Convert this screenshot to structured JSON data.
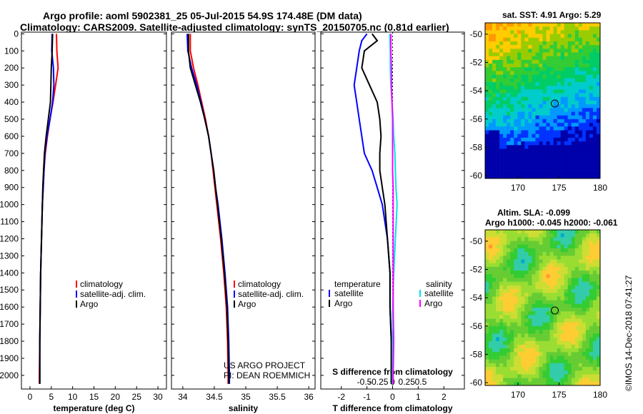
{
  "header": {
    "title_line1": "Argo profile: aoml 5902381_25 05-Jul-2015 54.9S 174.48E (DM data)",
    "title_line2": "Climatology: CARS2009. Satellite-adjusted climatology: synTS_20150705.nc (0.81d earlier)"
  },
  "sst_panel": {
    "title": "sat. SST: 4.91 Argo: 5.29",
    "y_ticks": [
      "-50",
      "-52",
      "-54",
      "-56",
      "-58",
      "-60"
    ],
    "x_ticks": [
      "170",
      "175",
      "180"
    ]
  },
  "sla_panel": {
    "title1": "Altim. SLA: -0.099",
    "title2": "Argo h1000: -0.045 h2000: -0.061",
    "y_ticks": [
      "-50",
      "-52",
      "-54",
      "-56",
      "-58",
      "-60"
    ],
    "x_ticks": [
      "170",
      "175",
      "180"
    ]
  },
  "side_label": "©IMOS 14-Dec-2018 07:41:27",
  "colors": {
    "climatology": "#ff0000",
    "satellite": "#0000ff",
    "argo": "#000000",
    "cyan": "#00e5ee",
    "magenta": "#ff00ff"
  },
  "chart_data": [
    {
      "type": "line",
      "title": "",
      "xlabel": "temperature (deg C)",
      "ylabel": "",
      "x_ticks": [
        "0",
        "5",
        "10",
        "15",
        "20",
        "25",
        "30"
      ],
      "y_ticks": [
        "0",
        "100",
        "200",
        "300",
        "400",
        "500",
        "600",
        "700",
        "800",
        "900",
        "1000",
        "1100",
        "1200",
        "1300",
        "1400",
        "1500",
        "1600",
        "1700",
        "1800",
        "1900",
        "2000"
      ],
      "xlim": [
        -2,
        32
      ],
      "ylim": [
        2080,
        -10
      ],
      "legend": [
        "climatology",
        "satellite-adj. clim.",
        "Argo"
      ],
      "series": [
        {
          "name": "climatology",
          "color": "#ff0000",
          "depth": [
            0,
            100,
            200,
            300,
            400,
            500,
            600,
            700,
            800,
            900,
            1000,
            1200,
            1400,
            1600,
            1800,
            2000,
            2050
          ],
          "values": [
            6.2,
            6.3,
            6.6,
            6.0,
            5.4,
            4.7,
            4.1,
            3.6,
            3.3,
            3.1,
            2.9,
            2.7,
            2.5,
            2.4,
            2.3,
            2.2,
            2.2
          ]
        },
        {
          "name": "satellite-adj. clim.",
          "color": "#0000ff",
          "depth": [
            0,
            100,
            200,
            300,
            400,
            500,
            600,
            700,
            800,
            900,
            1000,
            1200,
            1400,
            1600,
            1800,
            2000,
            2050
          ],
          "values": [
            5.2,
            5.1,
            5.5,
            5.6,
            5.3,
            4.7,
            4.0,
            3.5,
            3.3,
            3.1,
            2.9,
            2.7,
            2.5,
            2.4,
            2.3,
            2.3,
            2.3
          ]
        },
        {
          "name": "Argo",
          "color": "#000000",
          "depth": [
            0,
            100,
            200,
            300,
            400,
            500,
            600,
            700,
            800,
            900,
            1000,
            1200,
            1400,
            1600,
            1800,
            2000,
            2050
          ],
          "values": [
            5.3,
            5.2,
            5.0,
            4.9,
            4.8,
            4.3,
            3.8,
            3.4,
            3.2,
            3.0,
            2.9,
            2.7,
            2.5,
            2.4,
            2.3,
            2.3,
            2.3
          ]
        }
      ]
    },
    {
      "type": "line",
      "title": "",
      "xlabel": "salinity",
      "ylabel": "",
      "x_ticks": [
        "34",
        "34.5",
        "35",
        "35.5",
        "36"
      ],
      "xlim": [
        33.82,
        36.1
      ],
      "ylim": [
        2080,
        -10
      ],
      "legend": [
        "climatology",
        "satellite-adj. clim.",
        "Argo"
      ],
      "annotations": [
        "US ARGO PROJECT",
        "PI: DEAN ROEMMICH"
      ],
      "series": [
        {
          "name": "climatology",
          "color": "#ff0000",
          "depth": [
            0,
            100,
            200,
            300,
            400,
            500,
            600,
            700,
            800,
            900,
            1000,
            1200,
            1400,
            1600,
            1800,
            2000,
            2050
          ],
          "values": [
            34.12,
            34.12,
            34.17,
            34.24,
            34.3,
            34.36,
            34.41,
            34.45,
            34.48,
            34.51,
            34.54,
            34.6,
            34.65,
            34.69,
            34.71,
            34.72,
            34.72
          ]
        },
        {
          "name": "satellite-adj. clim.",
          "color": "#0000ff",
          "depth": [
            0,
            100,
            200,
            300,
            400,
            500,
            600,
            700,
            800,
            900,
            1000,
            1200,
            1400,
            1600,
            1800,
            2000,
            2050
          ],
          "values": [
            34.07,
            34.08,
            34.14,
            34.22,
            34.29,
            34.35,
            34.41,
            34.45,
            34.49,
            34.52,
            34.56,
            34.62,
            34.67,
            34.71,
            34.73,
            34.74,
            34.74
          ]
        },
        {
          "name": "Argo",
          "color": "#000000",
          "depth": [
            0,
            100,
            200,
            300,
            400,
            500,
            600,
            700,
            800,
            900,
            1000,
            1200,
            1400,
            1600,
            1800,
            2000,
            2050
          ],
          "values": [
            34.09,
            34.09,
            34.12,
            34.2,
            34.28,
            34.35,
            34.41,
            34.45,
            34.49,
            34.52,
            34.55,
            34.61,
            34.66,
            34.7,
            34.72,
            34.73,
            34.73
          ]
        }
      ]
    },
    {
      "type": "line",
      "title": "",
      "xlabel": "T difference from climatology",
      "xlabel_top": "S difference from climatology",
      "x_ticks": [
        "-2",
        "-1",
        "0",
        "1",
        "2"
      ],
      "x_ticks_top": [
        "-0.5",
        "-0.25",
        "0",
        "0.25",
        "0.5"
      ],
      "xlim": [
        -2.8,
        2.8
      ],
      "ylim": [
        2080,
        -10
      ],
      "legend_left_title": "temperature",
      "legend_right_title": "salinity",
      "legend_left": [
        "satellite",
        "Argo"
      ],
      "legend_right": [
        "satellite",
        "Argo"
      ],
      "series": [
        {
          "name": "temperature satellite",
          "color": "#0000ff",
          "depth": [
            0,
            40,
            100,
            200,
            300,
            400,
            500,
            600,
            700,
            800,
            900,
            1000,
            1200,
            1400,
            1600,
            1800,
            2000,
            2050
          ],
          "values": [
            -1.0,
            -1.2,
            -1.3,
            -1.4,
            -1.5,
            -1.4,
            -1.3,
            -1.2,
            -1.1,
            -0.8,
            -0.6,
            -0.4,
            -0.2,
            -0.1,
            -0.1,
            -0.05,
            -0.05,
            -0.05
          ]
        },
        {
          "name": "temperature Argo",
          "color": "#000000",
          "depth": [
            0,
            40,
            100,
            200,
            300,
            400,
            500,
            600,
            700,
            800,
            900,
            1000,
            1200,
            1400,
            1600,
            1800,
            2000,
            2050
          ],
          "values": [
            -0.8,
            -0.6,
            -1.1,
            -1.2,
            -0.9,
            -0.6,
            -0.5,
            -0.45,
            -0.5,
            -0.5,
            -0.4,
            -0.3,
            -0.2,
            -0.1,
            -0.1,
            -0.05,
            -0.05,
            -0.05
          ]
        },
        {
          "name": "salinity satellite",
          "color": "#00e5ee",
          "depth": [
            0,
            100,
            200,
            300,
            400,
            500,
            600,
            700,
            800,
            900,
            1000,
            1200,
            1400,
            1600,
            1800,
            2000,
            2050
          ],
          "values": [
            -0.05,
            -0.04,
            -0.04,
            -0.03,
            -0.01,
            0.01,
            0.02,
            0.04,
            0.05,
            0.06,
            0.08,
            0.05,
            0.02,
            0.0,
            0.0,
            0.0,
            0.0
          ]
        },
        {
          "name": "salinity Argo",
          "color": "#ff00ff",
          "depth": [
            0,
            100,
            200,
            300,
            400,
            500,
            600,
            700,
            800,
            900,
            1000,
            1200,
            1400,
            1600,
            1800,
            2000,
            2050
          ],
          "values": [
            -0.03,
            -0.03,
            -0.02,
            -0.02,
            -0.01,
            0.0,
            0.0,
            0.0,
            0.0,
            0.01,
            0.01,
            0.01,
            0.01,
            0.01,
            0.02,
            0.01,
            0.01
          ]
        }
      ]
    }
  ]
}
